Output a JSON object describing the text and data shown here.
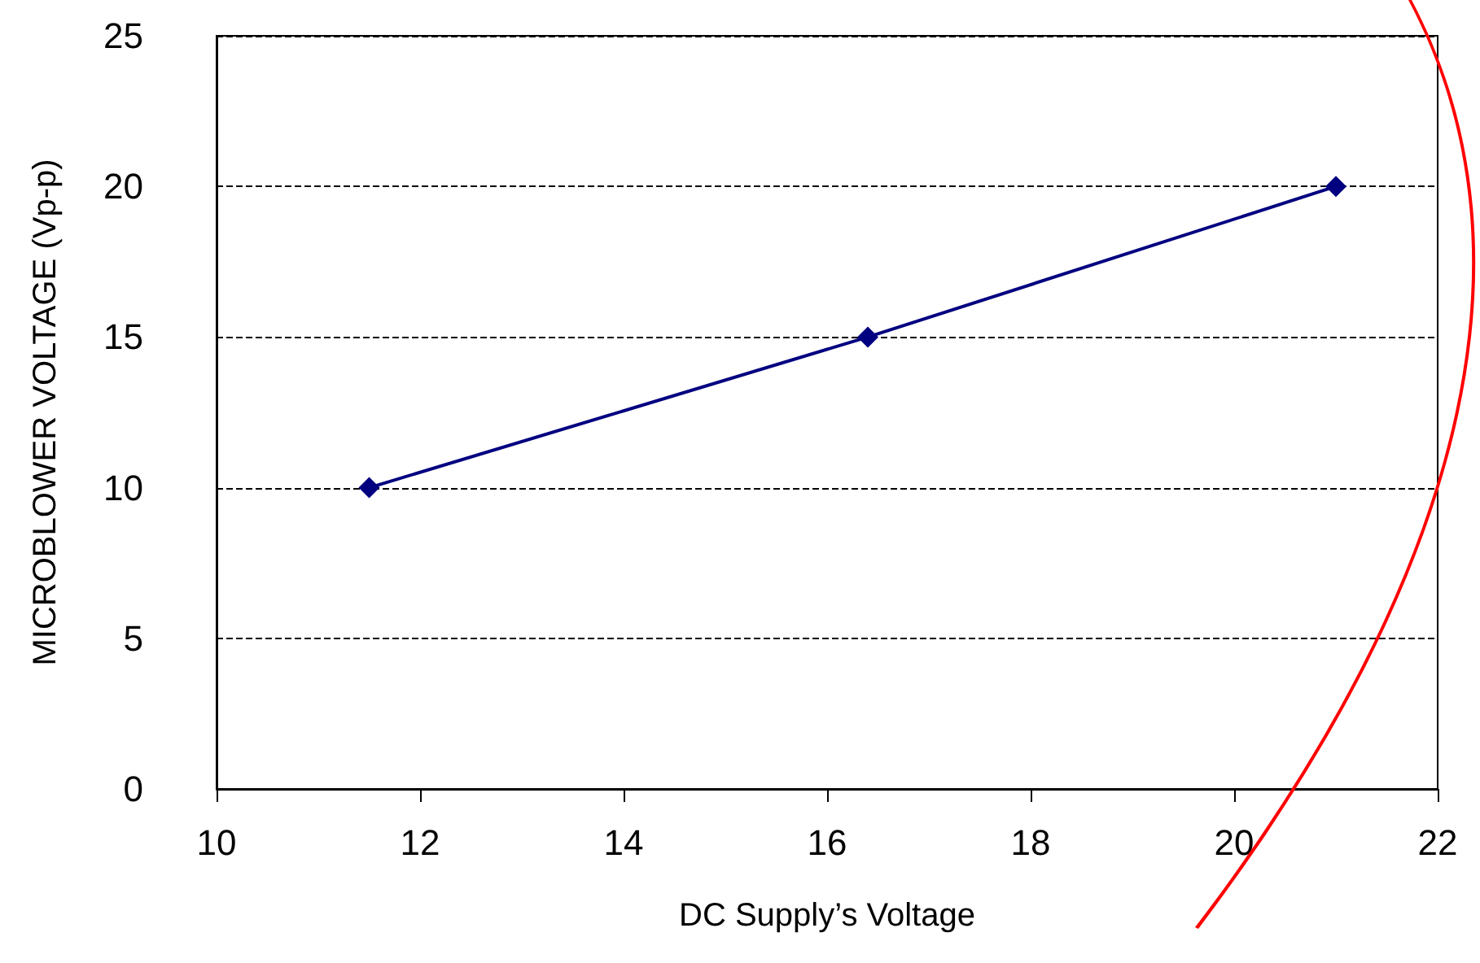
{
  "chart_data": {
    "type": "line",
    "xlabel": "DC Supply’s Voltage",
    "ylabel": "MICROBLOWER VOLTAGE (Vp-p)",
    "x": [
      11.5,
      16.4,
      21
    ],
    "series": [
      {
        "color": "#000080",
        "values": [
          10,
          15,
          20
        ]
      }
    ],
    "xlim": [
      10,
      22
    ],
    "xticks": [
      10,
      12,
      14,
      16,
      18,
      20,
      22
    ],
    "ylim": [
      0,
      25
    ],
    "yticks": [
      0,
      5,
      10,
      15,
      20,
      25
    ],
    "grid": "y",
    "marker": "diamond",
    "line_style": "solid"
  }
}
